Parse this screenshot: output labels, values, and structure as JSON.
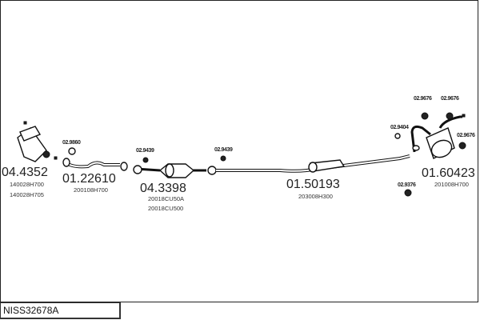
{
  "reference": "NISS32678A",
  "parts": [
    {
      "number": "04.4352",
      "codes": [
        "140028H700",
        "140028H705"
      ]
    },
    {
      "number": "01.22610",
      "codes": [
        "200108H700"
      ]
    },
    {
      "number": "04.3398",
      "codes": [
        "20018CU50A",
        "20018CU500"
      ]
    },
    {
      "number": "01.50193",
      "codes": [
        "203008H300"
      ]
    },
    {
      "number": "01.60423",
      "codes": [
        "201008H700"
      ]
    }
  ],
  "fittings": [
    "02.9860",
    "02.9439",
    "02.9439",
    "02.9404",
    "02.9676",
    "02.9676",
    "02.9676",
    "02.9376"
  ]
}
